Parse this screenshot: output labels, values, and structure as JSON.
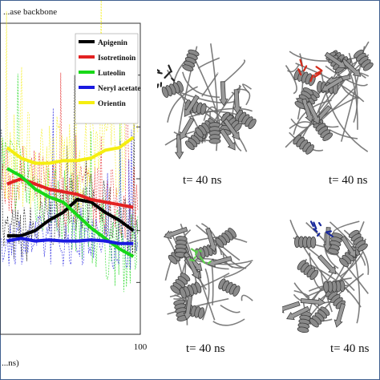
{
  "chart_data": {
    "type": "line",
    "title": "...ase backbone",
    "xlabel": "...ns)",
    "ylabel": "",
    "xlim": [
      0,
      100
    ],
    "x_tick_labels": [
      "100"
    ],
    "legend_position": "top-right",
    "series": [
      {
        "name": "Apigenin",
        "color": "#000000",
        "x": [
          5,
          15,
          25,
          35,
          45,
          55,
          65,
          75,
          85,
          95
        ],
        "y": [
          0.19,
          0.19,
          0.2,
          0.22,
          0.235,
          0.26,
          0.255,
          0.235,
          0.22,
          0.2
        ]
      },
      {
        "name": "Isotretinoin",
        "color": "#e32222",
        "x": [
          5,
          15,
          25,
          35,
          45,
          55,
          65,
          75,
          85,
          95
        ],
        "y": [
          0.29,
          0.3,
          0.29,
          0.28,
          0.275,
          0.27,
          0.26,
          0.255,
          0.25,
          0.245
        ]
      },
      {
        "name": "Luteolin",
        "color": "#18d818",
        "x": [
          5,
          15,
          25,
          35,
          45,
          55,
          65,
          75,
          85,
          95
        ],
        "y": [
          0.32,
          0.305,
          0.28,
          0.265,
          0.255,
          0.23,
          0.205,
          0.185,
          0.165,
          0.15
        ]
      },
      {
        "name": "Neryl acetate",
        "color": "#1a1ae0",
        "x": [
          5,
          15,
          25,
          35,
          45,
          55,
          65,
          75,
          85,
          95
        ],
        "y": [
          0.18,
          0.185,
          0.18,
          0.182,
          0.18,
          0.18,
          0.182,
          0.18,
          0.175,
          0.175
        ]
      },
      {
        "name": "Orientin",
        "color": "#f5ee10",
        "x": [
          5,
          15,
          25,
          35,
          45,
          55,
          65,
          75,
          85,
          95
        ],
        "y": [
          0.36,
          0.34,
          0.33,
          0.33,
          0.335,
          0.335,
          0.34,
          0.355,
          0.36,
          0.38
        ]
      }
    ]
  },
  "structures": [
    {
      "caption": "t= 40 ns",
      "ligand_color": "#222222"
    },
    {
      "caption": "t= 40 ns",
      "ligand_color": "#d42a1a"
    },
    {
      "caption": "t= 40 ns",
      "ligand_color": "#5cd04a"
    },
    {
      "caption": "t= 40 ns",
      "ligand_color": "#1a2a9a"
    }
  ]
}
